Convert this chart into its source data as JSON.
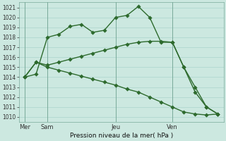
{
  "title": "Pression niveau de la mer( hPa )",
  "ylim": [
    1009.5,
    1021.5
  ],
  "yticks": [
    1010,
    1011,
    1012,
    1013,
    1014,
    1015,
    1016,
    1017,
    1018,
    1019,
    1020,
    1021
  ],
  "background_color": "#cce8e0",
  "grid_color": "#aad4cc",
  "line_color": "#2d6a2d",
  "xtick_labels": [
    "Mer",
    "Sam",
    "Jeu",
    "Ven"
  ],
  "xtick_positions": [
    0,
    2,
    8,
    13
  ],
  "vline_positions": [
    0,
    2,
    8,
    13
  ],
  "xlim": [
    -0.5,
    17.5
  ],
  "line1_x": [
    0,
    1,
    2,
    3,
    4,
    5,
    6,
    7,
    8,
    9,
    10,
    11,
    12,
    13,
    14,
    15,
    16,
    17
  ],
  "line1_y": [
    1014.0,
    1014.3,
    1018.0,
    1018.3,
    1019.1,
    1019.3,
    1018.5,
    1018.7,
    1020.0,
    1020.2,
    1021.1,
    1020.0,
    1017.5,
    1017.5,
    1015.0,
    1013.0,
    1011.0,
    1010.3
  ],
  "line2_x": [
    0,
    1,
    2,
    3,
    4,
    5,
    6,
    7,
    8,
    9,
    10,
    11,
    12,
    13,
    14,
    15,
    16,
    17
  ],
  "line2_y": [
    1014.0,
    1015.5,
    1015.2,
    1015.5,
    1015.8,
    1016.1,
    1016.4,
    1016.7,
    1017.0,
    1017.3,
    1017.5,
    1017.6,
    1017.6,
    1017.5,
    1015.0,
    1012.5,
    1011.0,
    1010.3
  ],
  "line3_x": [
    0,
    1,
    2,
    3,
    4,
    5,
    6,
    7,
    8,
    9,
    10,
    11,
    12,
    13,
    14,
    15,
    16,
    17
  ],
  "line3_y": [
    1014.0,
    1015.5,
    1015.0,
    1014.7,
    1014.4,
    1014.1,
    1013.8,
    1013.5,
    1013.2,
    1012.8,
    1012.5,
    1012.0,
    1011.5,
    1011.0,
    1010.5,
    1010.3,
    1010.2,
    1010.3
  ],
  "figsize": [
    3.2,
    2.0
  ],
  "dpi": 100
}
